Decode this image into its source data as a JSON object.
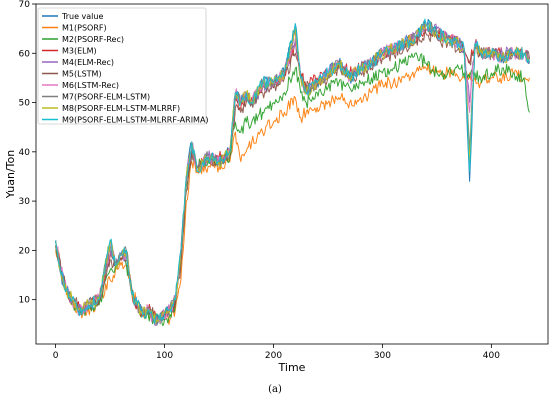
{
  "caption": "(a)",
  "chart_data": {
    "type": "line",
    "xlabel": "Time",
    "ylabel": "Yuan/Ton",
    "xlim": [
      -18,
      452
    ],
    "ylim": [
      1,
      70
    ],
    "xticks": [
      0,
      100,
      200,
      300,
      400
    ],
    "yticks": [
      10,
      20,
      30,
      40,
      50,
      60,
      70
    ],
    "grid": false,
    "legend_position": "top-left",
    "anchors_x": [
      0,
      5,
      10,
      15,
      20,
      25,
      30,
      40,
      50,
      55,
      60,
      65,
      70,
      75,
      80,
      85,
      90,
      95,
      100,
      105,
      110,
      115,
      120,
      125,
      130,
      135,
      140,
      150,
      160,
      165,
      170,
      175,
      180,
      190,
      200,
      210,
      220,
      225,
      230,
      240,
      250,
      260,
      270,
      280,
      290,
      300,
      310,
      320,
      330,
      340,
      350,
      360,
      370,
      375,
      380,
      385,
      390,
      400,
      410,
      420,
      430,
      435
    ],
    "series": [
      {
        "name": "True value",
        "color": "#1f77b4",
        "values": [
          22,
          15,
          12,
          10,
          8,
          8,
          9,
          10,
          22,
          17,
          19,
          20,
          11,
          9,
          7,
          8,
          6,
          6,
          7,
          8,
          10,
          20,
          35,
          42,
          36,
          38,
          39,
          38,
          40,
          52,
          50,
          52,
          50,
          54,
          54,
          56,
          66,
          55,
          52,
          54,
          56,
          58,
          55,
          57,
          58,
          60,
          61,
          62,
          63,
          66,
          64,
          63,
          62,
          61,
          34,
          62,
          60,
          60,
          59,
          60,
          60,
          58
        ]
      },
      {
        "name": "M1(PSORF)",
        "color": "#ff7f0e",
        "values": [
          20,
          16,
          11,
          9,
          8,
          7,
          8,
          9,
          14,
          16,
          17,
          17,
          12,
          9,
          7,
          7,
          6,
          6,
          6,
          6,
          8,
          14,
          30,
          38,
          36,
          37,
          37,
          37,
          38,
          44,
          38,
          40,
          42,
          44,
          46,
          48,
          51,
          47,
          48,
          49,
          50,
          51,
          50,
          51,
          52,
          54,
          54,
          55,
          56,
          57,
          56,
          56,
          55,
          55,
          56,
          55,
          54,
          55,
          55,
          56,
          55,
          55
        ]
      },
      {
        "name": "M2(PSORF-Rec)",
        "color": "#2ca02c",
        "values": [
          21,
          15,
          12,
          9,
          8,
          8,
          8,
          9,
          16,
          17,
          18,
          17,
          12,
          9,
          7,
          7,
          6,
          6,
          6,
          7,
          9,
          18,
          33,
          40,
          37,
          38,
          38,
          38,
          39,
          46,
          44,
          46,
          46,
          48,
          50,
          52,
          57,
          52,
          50,
          52,
          53,
          54,
          53,
          54,
          55,
          56,
          57,
          58,
          60,
          58,
          56,
          56,
          57,
          56,
          55,
          56,
          55,
          56,
          57,
          56,
          55,
          48
        ]
      },
      {
        "name": "M3(ELM)",
        "color": "#d62728",
        "values": [
          22,
          16,
          12,
          10,
          9,
          8,
          9,
          10,
          19,
          17,
          18,
          19,
          11,
          9,
          7,
          8,
          7,
          6,
          7,
          8,
          10,
          19,
          34,
          41,
          37,
          38,
          39,
          39,
          40,
          51,
          49,
          51,
          51,
          53,
          54,
          56,
          62,
          56,
          53,
          55,
          56,
          58,
          56,
          57,
          58,
          60,
          61,
          62,
          63,
          65,
          64,
          63,
          62,
          61,
          58,
          62,
          60,
          60,
          60,
          60,
          60,
          59
        ]
      },
      {
        "name": "M4(ELM-Rec)",
        "color": "#9467bd",
        "values": [
          22,
          16,
          12,
          10,
          9,
          8,
          9,
          10,
          20,
          17,
          19,
          19,
          11,
          9,
          7,
          8,
          6,
          6,
          7,
          8,
          10,
          19,
          34,
          41,
          37,
          38,
          39,
          38,
          40,
          52,
          50,
          51,
          50,
          53,
          54,
          56,
          63,
          55,
          53,
          54,
          56,
          58,
          55,
          57,
          58,
          60,
          61,
          62,
          64,
          66,
          65,
          63,
          62,
          61,
          50,
          62,
          60,
          60,
          60,
          60,
          60,
          59
        ]
      },
      {
        "name": "M5(LSTM)",
        "color": "#8c564b",
        "values": [
          21,
          16,
          12,
          10,
          9,
          8,
          9,
          10,
          18,
          17,
          18,
          18,
          12,
          9,
          8,
          8,
          7,
          6,
          7,
          8,
          9,
          17,
          32,
          40,
          37,
          38,
          38,
          38,
          39,
          49,
          48,
          50,
          50,
          52,
          53,
          55,
          60,
          55,
          53,
          54,
          55,
          57,
          55,
          56,
          57,
          59,
          60,
          61,
          62,
          64,
          63,
          62,
          61,
          60,
          58,
          61,
          60,
          60,
          59,
          60,
          60,
          59
        ]
      },
      {
        "name": "M6(LSTM-Rec)",
        "color": "#e377c2",
        "values": [
          22,
          16,
          12,
          10,
          8,
          8,
          9,
          10,
          21,
          17,
          19,
          19,
          11,
          9,
          7,
          8,
          6,
          6,
          7,
          8,
          10,
          20,
          35,
          42,
          36,
          38,
          39,
          38,
          40,
          52,
          50,
          52,
          50,
          54,
          54,
          56,
          64,
          55,
          52,
          54,
          56,
          58,
          55,
          57,
          58,
          60,
          61,
          62,
          63,
          65,
          64,
          63,
          62,
          61,
          48,
          62,
          60,
          60,
          59,
          60,
          60,
          58
        ]
      },
      {
        "name": "M7(PSORF-ELM-LSTM)",
        "color": "#7f7f7f",
        "values": [
          22,
          15,
          12,
          10,
          8,
          8,
          9,
          10,
          21,
          17,
          19,
          20,
          11,
          9,
          7,
          8,
          6,
          6,
          7,
          8,
          10,
          20,
          35,
          42,
          36,
          38,
          39,
          38,
          40,
          52,
          50,
          52,
          50,
          54,
          54,
          56,
          65,
          55,
          52,
          54,
          56,
          58,
          55,
          57,
          58,
          60,
          61,
          62,
          63,
          66,
          64,
          63,
          62,
          61,
          40,
          62,
          60,
          60,
          59,
          60,
          60,
          58
        ]
      },
      {
        "name": "M8(PSORF-ELM-LSTM-MLRRF)",
        "color": "#bcbd22",
        "values": [
          22,
          15,
          12,
          10,
          8,
          8,
          9,
          10,
          22,
          17,
          19,
          20,
          11,
          9,
          7,
          8,
          6,
          6,
          7,
          8,
          10,
          20,
          35,
          42,
          36,
          38,
          39,
          38,
          40,
          52,
          50,
          52,
          50,
          54,
          54,
          56,
          65,
          55,
          52,
          54,
          56,
          58,
          55,
          57,
          58,
          60,
          61,
          62,
          63,
          66,
          64,
          63,
          62,
          61,
          38,
          62,
          60,
          60,
          59,
          60,
          60,
          58
        ]
      },
      {
        "name": "M9(PSORF-ELM-LSTM-MLRRF-ARIMA)",
        "color": "#17becf",
        "values": [
          22,
          15,
          12,
          10,
          8,
          8,
          9,
          10,
          22,
          17,
          19,
          20,
          11,
          9,
          7,
          8,
          6,
          6,
          7,
          8,
          10,
          20,
          35,
          42,
          36,
          38,
          39,
          38,
          40,
          52,
          50,
          52,
          50,
          54,
          54,
          56,
          66,
          55,
          52,
          54,
          56,
          58,
          55,
          57,
          58,
          60,
          61,
          62,
          63,
          66,
          64,
          63,
          62,
          61,
          36,
          62,
          60,
          60,
          59,
          60,
          60,
          58
        ]
      }
    ]
  }
}
